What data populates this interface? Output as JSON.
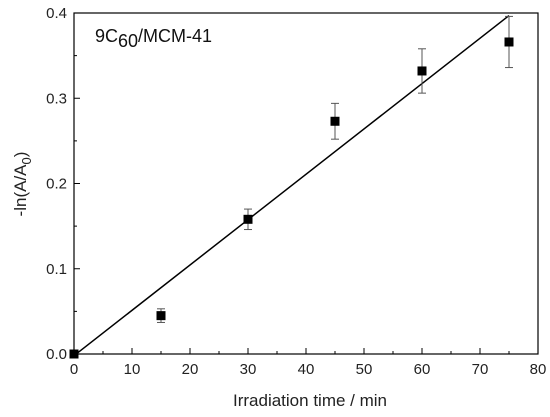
{
  "chart_data": {
    "type": "scatter",
    "title": "",
    "annotation": {
      "main": "9C",
      "sub": "60",
      "rest": "/MCM-41"
    },
    "xlabel": "Irradiation time / min",
    "ylabel": {
      "main": "-ln(A/A",
      "sub": "0",
      "rest": ")"
    },
    "xlim": [
      0,
      80
    ],
    "ylim": [
      0,
      0.4
    ],
    "xticks": [
      0,
      10,
      20,
      30,
      40,
      50,
      60,
      70,
      80
    ],
    "yticks": [
      0.0,
      0.1,
      0.2,
      0.3,
      0.4
    ],
    "ytick_labels": [
      "0.0",
      "0.1",
      "0.2",
      "0.3",
      "0.4"
    ],
    "grid": false,
    "points": [
      {
        "x": 0,
        "y": 0.0,
        "err": 0.0
      },
      {
        "x": 15,
        "y": 0.045,
        "err": 0.008
      },
      {
        "x": 30,
        "y": 0.158,
        "err": 0.012
      },
      {
        "x": 45,
        "y": 0.273,
        "err": 0.021
      },
      {
        "x": 60,
        "y": 0.332,
        "err": 0.026
      },
      {
        "x": 75,
        "y": 0.366,
        "err": 0.03
      }
    ],
    "fit_line": {
      "x": [
        0,
        75
      ],
      "y": [
        -0.002,
        0.397
      ]
    },
    "colors": {
      "marker": "#000000",
      "line": "#000000"
    }
  }
}
